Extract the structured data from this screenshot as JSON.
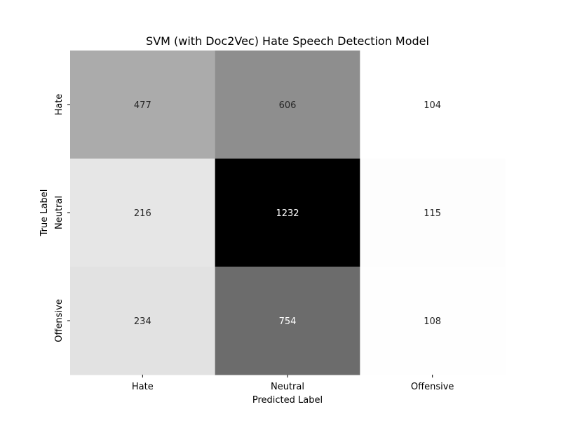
{
  "chart_data": {
    "type": "heatmap",
    "title": "SVM (with Doc2Vec) Hate Speech Detection Model",
    "xlabel": "Predicted Label",
    "ylabel": "True Label",
    "x_categories": [
      "Hate",
      "Neutral",
      "Offensive"
    ],
    "y_categories": [
      "Hate",
      "Neutral",
      "Offensive"
    ],
    "values": [
      [
        477,
        606,
        104
      ],
      [
        216,
        1232,
        115
      ],
      [
        234,
        754,
        108
      ]
    ],
    "colormap": "grays (low = white, high = black)",
    "value_range": [
      104,
      1232
    ],
    "colorbar": false,
    "grid": false
  }
}
